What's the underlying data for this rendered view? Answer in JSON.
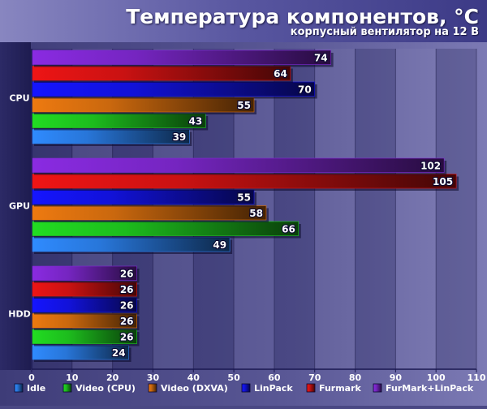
{
  "chart_data": {
    "type": "bar",
    "orientation": "horizontal",
    "title": "Температура компонентов, °С",
    "subtitle": "корпусный вентилятор на 12 В",
    "categories": [
      "CPU",
      "GPU",
      "HDD"
    ],
    "series": [
      {
        "name": "Idle",
        "color": "#2f8bff",
        "values": [
          39,
          49,
          24
        ]
      },
      {
        "name": "Video (CPU)",
        "color": "#22dd22",
        "values": [
          43,
          66,
          26
        ]
      },
      {
        "name": "Video (DXVA)",
        "color": "#ee7a10",
        "values": [
          55,
          58,
          26
        ]
      },
      {
        "name": "LinPack",
        "color": "#1515ff",
        "values": [
          70,
          55,
          26
        ]
      },
      {
        "name": "Furmark",
        "color": "#ee1515",
        "values": [
          64,
          105,
          26
        ]
      },
      {
        "name": "FurMark+LinPack",
        "color": "#8a2be2",
        "values": [
          74,
          102,
          26
        ]
      }
    ],
    "xlim": [
      0,
      110
    ],
    "xticks": [
      0,
      10,
      20,
      30,
      40,
      50,
      60,
      70,
      80,
      90,
      100,
      110
    ],
    "legend_position": "bottom",
    "grid": true
  }
}
